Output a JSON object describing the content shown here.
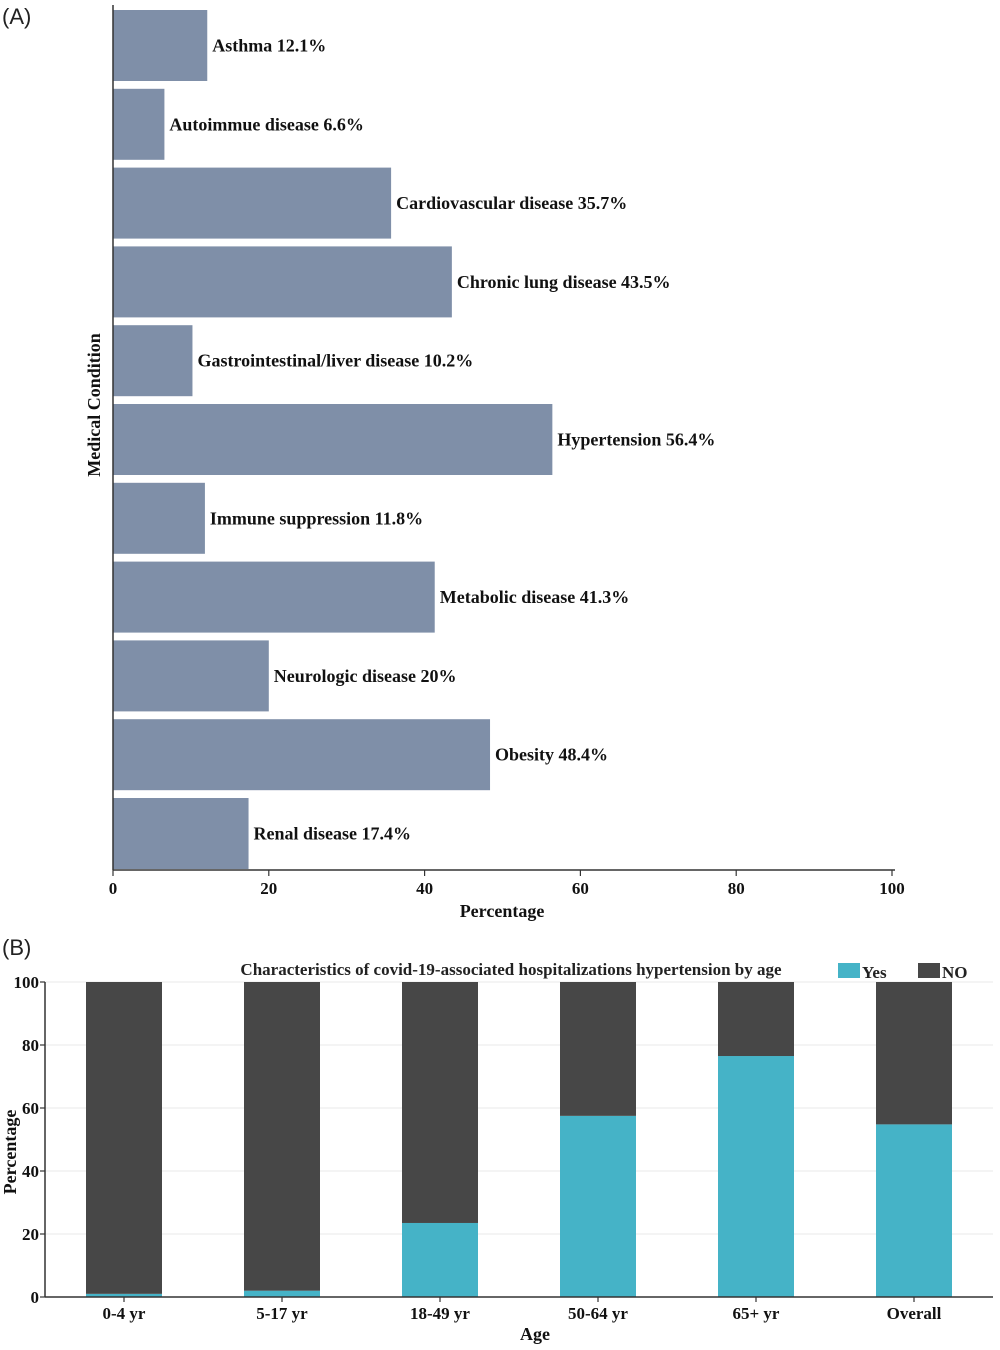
{
  "chart_data": [
    {
      "panel": "(A)",
      "type": "bar",
      "orientation": "horizontal",
      "title": "",
      "xlabel": "Percentage",
      "ylabel": "Medical Condition",
      "xlim": [
        0,
        100
      ],
      "xticks": [
        0,
        20,
        40,
        60,
        80,
        100
      ],
      "bar_color": "#7f8fa8",
      "categories": [
        "Asthma",
        "Autoimmue disease",
        "Cardiovascular disease",
        "Chronic lung disease",
        "Gastrointestinal/liver disease",
        "Hypertension",
        "Immune suppression",
        "Metabolic disease",
        "Neurologic disease",
        "Obesity",
        "Renal disease"
      ],
      "values": [
        12.1,
        6.6,
        35.7,
        43.5,
        10.2,
        56.4,
        11.8,
        41.3,
        20,
        48.4,
        17.4
      ],
      "labels": [
        "Asthma 12.1%",
        "Autoimmue disease 6.6%",
        "Cardiovascular disease 35.7%",
        "Chronic lung disease 43.5%",
        "Gastrointestinal/liver disease 10.2%",
        "Hypertension 56.4%",
        "Immune suppression 11.8%",
        "Metabolic disease 41.3%",
        "Neurologic disease 20%",
        "Obesity 48.4%",
        "Renal disease 17.4%"
      ],
      "grid": false
    },
    {
      "panel": "(B)",
      "type": "bar",
      "stacked": true,
      "title": "Characteristics of covid-19-associated hospitalizations hypertension by age",
      "xlabel": "Age",
      "ylabel": "Percentage",
      "ylim": [
        0,
        100
      ],
      "yticks": [
        0,
        20,
        40,
        60,
        80,
        100
      ],
      "categories": [
        "0-4 yr",
        "5-17 yr",
        "18-49 yr",
        "50-64 yr",
        "65+ yr",
        "Overall"
      ],
      "series": [
        {
          "name": "Yes",
          "color": "#45b3c7",
          "values": [
            1,
            2,
            23.5,
            57.5,
            76.5,
            54.8
          ]
        },
        {
          "name": "NO",
          "color": "#474747",
          "values": [
            99,
            98,
            76.5,
            42.5,
            23.5,
            45.2
          ]
        }
      ],
      "legend_position": "top-right",
      "grid": true
    }
  ]
}
